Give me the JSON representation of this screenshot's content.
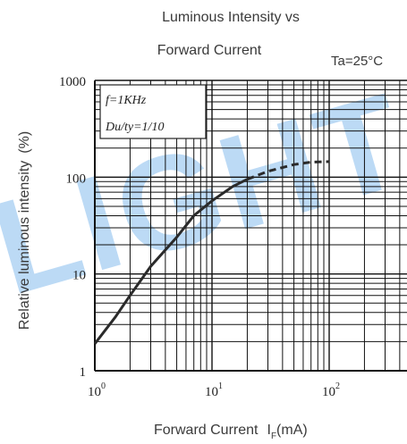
{
  "chart_data": {
    "type": "line",
    "title_line1": "Luminous Intensity vs",
    "title_line2": "Forward Current",
    "condition": "Ta=25°C",
    "annotation_line1": "f=1KHz",
    "annotation_line2": "Du/ty=1/10",
    "xlabel": "Forward Current",
    "xlabel_symbol": "I",
    "xlabel_subscript": "F",
    "xlabel_unit": "(mA)",
    "ylabel": "Relative luminous intensity",
    "ylabel_unit": "(%)",
    "x_scale": "log",
    "y_scale": "log",
    "xlim": [
      1,
      300
    ],
    "ylim": [
      1,
      1000
    ],
    "x_ticks": [
      {
        "value": 1,
        "base": "10",
        "exp": "0"
      },
      {
        "value": 10,
        "base": "10",
        "exp": "1"
      },
      {
        "value": 100,
        "base": "10",
        "exp": "2"
      }
    ],
    "y_ticks": [
      {
        "value": 1,
        "label": "1"
      },
      {
        "value": 10,
        "label": "10"
      },
      {
        "value": 100,
        "label": "100"
      },
      {
        "value": 1000,
        "label": "1000"
      }
    ],
    "grid": true,
    "watermark": "LIGHT",
    "series": [
      {
        "style": "solid",
        "x": [
          1,
          1.5,
          2,
          3,
          5,
          7,
          10,
          15,
          20
        ],
        "y": [
          1.9,
          3.6,
          6,
          12,
          24,
          40,
          57,
          80,
          95
        ]
      },
      {
        "style": "dashed",
        "x": [
          20,
          30,
          50,
          70,
          100
        ],
        "y": [
          95,
          115,
          135,
          143,
          145
        ]
      }
    ]
  }
}
